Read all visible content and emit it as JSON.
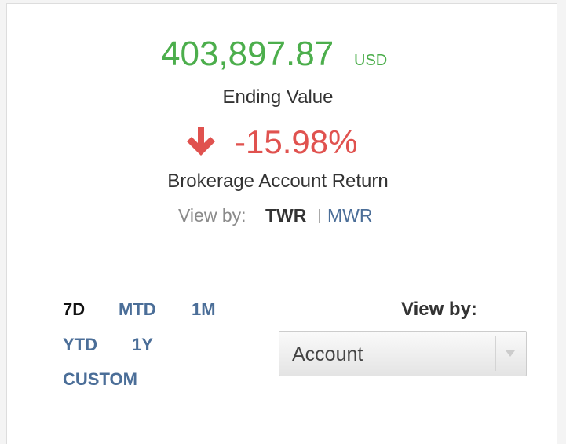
{
  "summary": {
    "ending_value": "403,897.87",
    "currency": "USD",
    "ending_value_label": "Ending Value",
    "return": "-15.98%",
    "return_label": "Brokerage Account Return",
    "view_by_label": "View by:",
    "methods": [
      "TWR",
      "MWR"
    ]
  },
  "periods": [
    "7D",
    "MTD",
    "1M",
    "YTD",
    "1Y",
    "CUSTOM"
  ],
  "selector": {
    "label": "View by:",
    "selected": "Account"
  }
}
